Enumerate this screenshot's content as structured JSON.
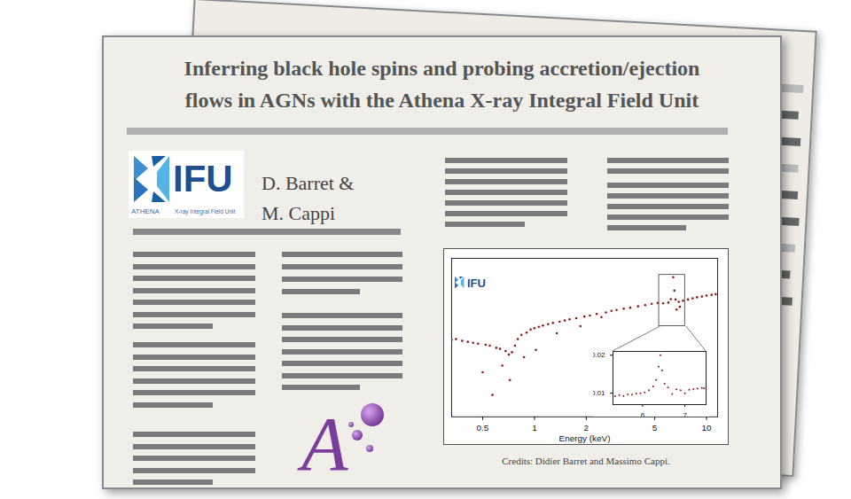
{
  "header": {
    "title_lines": [
      "Inferring black hole spins and probing accretion/ejection",
      "flows in AGNs with the Athena X-ray Integral Field Unit"
    ],
    "authors": [
      "D. Barret &",
      "M. Cappi"
    ]
  },
  "logo": {
    "text": "IFU",
    "mission": "ATHENA",
    "subtitle": "X-ray Integral Field Unit"
  },
  "athena_logo": "A",
  "chart_data": [
    {
      "type": "scatter",
      "annotation": "IFU",
      "xlabel": "Energy (keV)",
      "log": true,
      "tick_labels": "x",
      "color": "#8b1a1a",
      "marker": "dot",
      "xlim": [
        0.33,
        11.6
      ],
      "xticks": [
        0.5,
        1,
        2,
        5,
        10
      ],
      "ylim": [
        0.001,
        0.03
      ],
      "x": [
        0.33,
        0.35,
        0.38,
        0.41,
        0.44,
        0.47,
        0.5,
        0.52,
        0.55,
        0.57,
        0.6,
        0.63,
        0.65,
        0.68,
        0.71,
        0.72,
        0.74,
        0.77,
        0.8,
        0.84,
        0.87,
        0.9,
        0.95,
        1.0,
        1.02,
        1.06,
        1.12,
        1.2,
        1.28,
        1.35,
        1.4,
        1.5,
        1.6,
        1.75,
        1.85,
        1.95,
        2.1,
        2.3,
        2.45,
        2.6,
        2.8,
        3.0,
        3.3,
        3.6,
        4.0,
        4.4,
        4.8,
        5.2,
        5.6,
        6.0,
        6.2,
        6.4,
        6.5,
        6.6,
        6.7,
        6.9,
        7.0,
        7.3,
        7.8,
        8.3,
        8.8,
        9.4,
        10.0,
        10.7,
        11.3
      ],
      "values": [
        0.0052,
        0.0053,
        0.0051,
        0.005,
        0.0049,
        0.0048,
        0.0026,
        0.0047,
        0.0046,
        0.0016,
        0.0044,
        0.0043,
        0.003,
        0.0041,
        0.0038,
        0.0022,
        0.004,
        0.0046,
        0.0053,
        0.0058,
        0.0036,
        0.0061,
        0.0065,
        0.0067,
        0.0042,
        0.0069,
        0.0071,
        0.0073,
        0.0075,
        0.006,
        0.0077,
        0.0079,
        0.0081,
        0.0083,
        0.007,
        0.0086,
        0.0088,
        0.0091,
        0.0085,
        0.0094,
        0.0097,
        0.0099,
        0.0102,
        0.0104,
        0.0107,
        0.011,
        0.0113,
        0.0115,
        0.0114,
        0.0116,
        0.0125,
        0.02,
        0.015,
        0.0124,
        0.01,
        0.0118,
        0.0106,
        0.0121,
        0.0124,
        0.0127,
        0.013,
        0.0132,
        0.0135,
        0.0137,
        0.0139
      ]
    },
    {
      "type": "scatter",
      "color": "#8b1a1a",
      "marker": "dot",
      "xlim": [
        5.3,
        7.5
      ],
      "xticks": [
        6,
        7
      ],
      "ylim": [
        0.007,
        0.021
      ],
      "yticks": [
        0.01,
        0.02
      ],
      "x": [
        5.35,
        5.45,
        5.55,
        5.65,
        5.75,
        5.85,
        5.95,
        6.05,
        6.15,
        6.25,
        6.32,
        6.38,
        6.42,
        6.46,
        6.52,
        6.6,
        6.7,
        6.8,
        6.9,
        7.0,
        7.1,
        7.2,
        7.3,
        7.4,
        7.45
      ],
      "values": [
        0.0092,
        0.0095,
        0.0093,
        0.0097,
        0.0096,
        0.0099,
        0.01,
        0.0102,
        0.0108,
        0.0118,
        0.0135,
        0.017,
        0.02,
        0.016,
        0.0125,
        0.0115,
        0.0098,
        0.011,
        0.0108,
        0.01,
        0.0109,
        0.0111,
        0.0112,
        0.0114,
        0.0113
      ]
    }
  ],
  "credit": "Credits: Didier Barret and Massimo Cappi."
}
